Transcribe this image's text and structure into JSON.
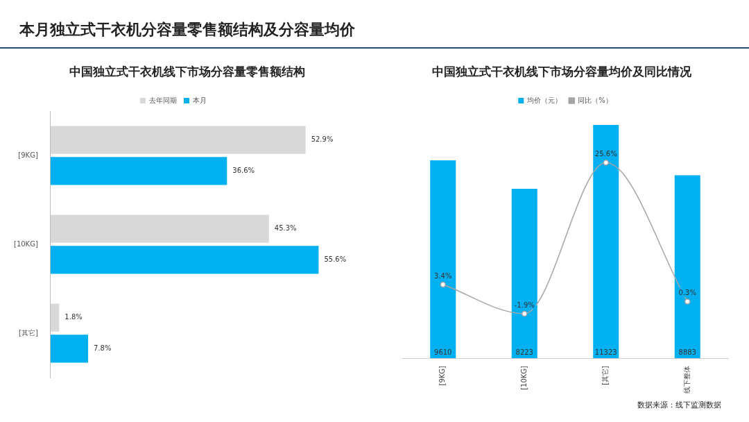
{
  "chart_data": [
    {
      "type": "bar",
      "orientation": "horizontal",
      "title": "本月独立式干衣机分容量零售额结构及分容量均价",
      "subtitle": "中国独立式干衣机线下市场分容量零售额结构",
      "categories": [
        "[9KG]",
        "[10KG]",
        "[其它]"
      ],
      "tick_labels": "y",
      "legend": "top",
      "series": [
        {
          "name": "去年同期",
          "color": "#d9d9d9",
          "values": [
            52.9,
            45.3,
            1.8
          ],
          "value_labels": [
            "52.9%",
            "45.3%",
            "1.8%"
          ]
        },
        {
          "name": "本月",
          "color": "#00b0f0",
          "values": [
            36.6,
            55.6,
            7.8
          ],
          "value_labels": [
            "36.6%",
            "55.6%",
            "7.8%"
          ]
        }
      ]
    },
    {
      "type": "bar",
      "title": "中国独立式干衣机线下市场分容量均价及同比情况",
      "categories": [
        "[9KG]",
        "[10KG]",
        "[其它]",
        "线下整体"
      ],
      "tick_labels": "x",
      "legend": "top",
      "marker": "circle",
      "annotations": [
        "数据来源：线下监测数据"
      ],
      "series": [
        {
          "name": "均价（元）",
          "color": "#00b0f0",
          "values": [
            9610,
            8223,
            11323,
            8883
          ],
          "value_labels": [
            "9610",
            "8223",
            "11323",
            "8883"
          ]
        },
        {
          "name": "同比（%）",
          "type": "line",
          "axis": "y2",
          "color": "#a5a5a5",
          "values": [
            3.4,
            -1.9,
            25.6,
            0.3
          ],
          "value_labels": [
            "3.4%",
            "-1.9%",
            "25.6%",
            "0.3%"
          ]
        }
      ]
    }
  ]
}
